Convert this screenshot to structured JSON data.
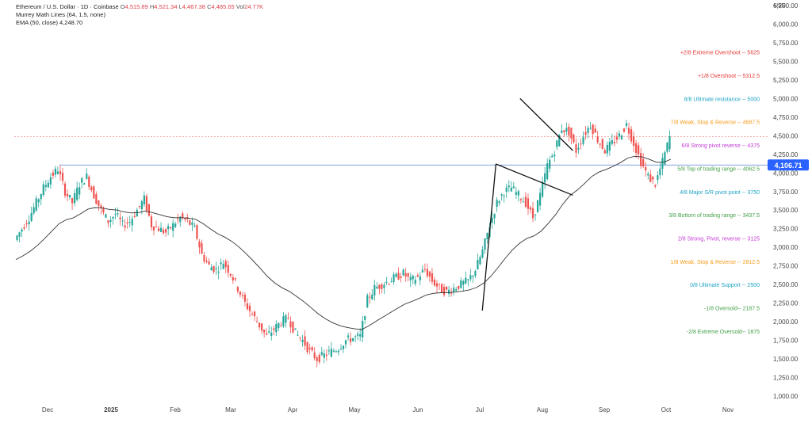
{
  "header": {
    "symbol": "Ethereum / U.S. Dollar · 1D · Coinbase",
    "o_label": "O",
    "o_value": "4,515.89",
    "h_label": "H",
    "h_value": "4,521.34",
    "l_label": "L",
    "l_value": "4,467.38",
    "c_label": "C",
    "c_value": "4,485.65",
    "vol_label": "Vol",
    "vol_value": "24.77K",
    "indicator1": "Murrey Math Lines (64, 1.5, none)",
    "indicator2_name": "EMA (50, close)",
    "indicator2_value": "4,248.70"
  },
  "axis_unit": "USD",
  "price_badge": "4,106.71",
  "colors": {
    "up": "#26a69a",
    "down": "#ef5350",
    "ema": "#333333",
    "hline": "#5b7fd6",
    "badge": "#2962ff",
    "current_price_line": "#e57373",
    "trendline": "#111111"
  },
  "chart_data": {
    "type": "candlestick",
    "title": "",
    "ylim": [
      900,
      6300
    ],
    "y_ticks": [
      "6,250.00",
      "6,000.00",
      "5,750.00",
      "5,500.00",
      "5,250.00",
      "5,000.00",
      "4,750.00",
      "4,500.00",
      "4,250.00",
      "4,000.00",
      "3,750.00",
      "3,500.00",
      "3,250.00",
      "3,000.00",
      "2,750.00",
      "2,500.00",
      "2,250.00",
      "2,000.00",
      "1,750.00",
      "1,500.00",
      "1,250.00",
      "1,000.00"
    ],
    "x_ticks": [
      "Dec",
      "2025",
      "Feb",
      "Mar",
      "Apr",
      "May",
      "Jun",
      "Jul",
      "Aug",
      "Sep",
      "Oct",
      "Nov"
    ],
    "close_path": [
      3100,
      3250,
      3400,
      3600,
      3800,
      3950,
      4050,
      3750,
      3600,
      3850,
      3950,
      3700,
      3500,
      3350,
      3450,
      3300,
      3350,
      3500,
      3650,
      3300,
      3250,
      3200,
      3300,
      3400,
      3350,
      3250,
      2900,
      2750,
      2700,
      2800,
      2650,
      2450,
      2250,
      2100,
      1950,
      1800,
      1900,
      2000,
      2050,
      1850,
      1750,
      1600,
      1500,
      1550,
      1600,
      1650,
      1750,
      1780,
      1800,
      2300,
      2450,
      2500,
      2550,
      2600,
      2650,
      2550,
      2600,
      2700,
      2550,
      2450,
      2400,
      2450,
      2500,
      2550,
      2700,
      2950,
      3300,
      3600,
      3750,
      3800,
      3700,
      3600,
      3400,
      3700,
      4100,
      4300,
      4600,
      4550,
      4300,
      4500,
      4650,
      4450,
      4300,
      4400,
      4500,
      4650,
      4400,
      4150,
      3950,
      3850,
      4150,
      4480
    ],
    "candle_stats": {
      "open": 4515.89,
      "high": 4521.34,
      "low": 4467.38,
      "close": 4485.65,
      "volume": "24.77K"
    },
    "ema_50_last": 4248.7,
    "last_price": 4106.71,
    "current_close_line": 4485.65,
    "murrey_lines": [
      {
        "label": "+2/8 Extreme Overshoot --  5625",
        "value": 5625,
        "color": "#e53935"
      },
      {
        "label": "+1/8 Overshoot --  5312.5",
        "value": 5312.5,
        "color": "#e53935"
      },
      {
        "label": "8/8 Ultimate resistance --  5000",
        "value": 5000,
        "color": "#1ea4c4"
      },
      {
        "label": "7/8 Weak, Stop & Reverse --  4687.5",
        "value": 4687.5,
        "color": "#f59c1a"
      },
      {
        "label": "6/8 Strong pivot reverse --  4375",
        "value": 4375,
        "color": "#c23bd4"
      },
      {
        "label": "5/8 Top of trading range --  4062.5",
        "value": 4062.5,
        "color": "#43a047"
      },
      {
        "label": "4/8 Major S/R pivot point --  3750",
        "value": 3750,
        "color": "#1ea4c4"
      },
      {
        "label": "3/8 Bottom of trading range --  3437.5",
        "value": 3437.5,
        "color": "#43a047"
      },
      {
        "label": "2/8 Strong, Pivot, reverse --  3125",
        "value": 3125,
        "color": "#c23bd4"
      },
      {
        "label": "1/8 Weak, Stop & Reverse --  2812.5",
        "value": 2812.5,
        "color": "#f59c1a"
      },
      {
        "label": "0/8 Ultimate Support --  2500",
        "value": 2500,
        "color": "#1ea4c4"
      },
      {
        "label": "-1/8 Oversold--  2187.5",
        "value": 2187.5,
        "color": "#43a047"
      },
      {
        "label": "-2/8 Extreme Oversold--  1875",
        "value": 1875,
        "color": "#43a047"
      }
    ],
    "trendlines": [
      {
        "from": [
          0.62,
          2150
        ],
        "to": [
          0.638,
          4120
        ]
      },
      {
        "from": [
          0.638,
          4120
        ],
        "to": [
          0.74,
          3700
        ]
      },
      {
        "from": [
          0.67,
          5000
        ],
        "to": [
          0.74,
          4300
        ]
      }
    ],
    "horizontal_level": 4106.71
  }
}
